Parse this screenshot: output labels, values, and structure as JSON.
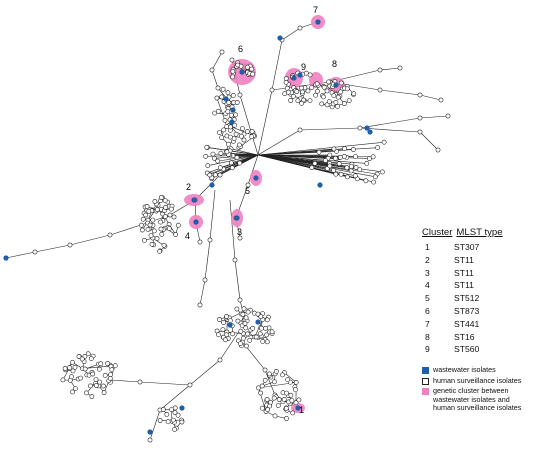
{
  "legend": {
    "title_cluster": "Cluster",
    "title_mlst": "MLST type",
    "rows": [
      {
        "cluster": "1",
        "mlst": "ST307"
      },
      {
        "cluster": "2",
        "mlst": "ST11"
      },
      {
        "cluster": "3",
        "mlst": "ST11"
      },
      {
        "cluster": "4",
        "mlst": "ST11"
      },
      {
        "cluster": "5",
        "mlst": "ST512"
      },
      {
        "cluster": "6",
        "mlst": "ST873"
      },
      {
        "cluster": "7",
        "mlst": "ST441"
      },
      {
        "cluster": "8",
        "mlst": "ST16"
      },
      {
        "cluster": "9",
        "mlst": "ST560"
      }
    ]
  },
  "key": {
    "wastewater": "wastewater isolates",
    "human": "human surveillance isolates",
    "genetic_lines": [
      "genetic cluster between",
      "wastewater isolates and",
      "human surveillance isolates"
    ]
  },
  "cluster_labels": [
    "1",
    "2",
    "3",
    "4",
    "5",
    "6",
    "7",
    "8",
    "9"
  ],
  "colors": {
    "wastewater": "#1f5ea8",
    "human_fill": "#ffffff",
    "genetic_cluster": "#f07fc0",
    "edge": "#222222"
  }
}
